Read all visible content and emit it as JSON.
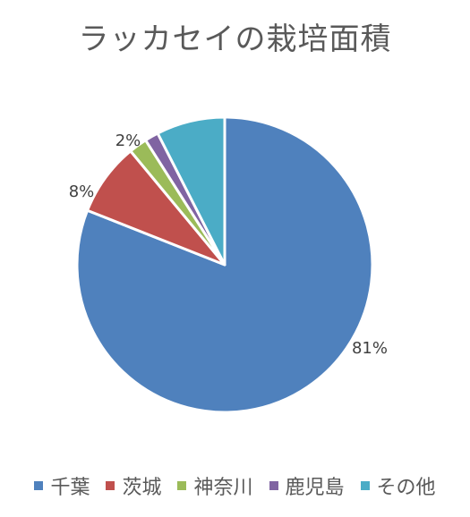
{
  "chart_data": {
    "type": "pie",
    "title": "ラッカセイの栽培面積",
    "categories": [
      "千葉",
      "茨城",
      "神奈川",
      "鹿児島",
      "その他"
    ],
    "values": [
      81,
      8,
      2,
      1.5,
      7.5
    ],
    "data_labels": [
      "81%",
      "8%",
      "2%",
      "",
      ""
    ],
    "colors": [
      "#4F81BD",
      "#C0504D",
      "#9BBB59",
      "#8064A2",
      "#4BACC6"
    ],
    "legend_position": "bottom",
    "start_angle": "top",
    "direction": "clockwise"
  }
}
